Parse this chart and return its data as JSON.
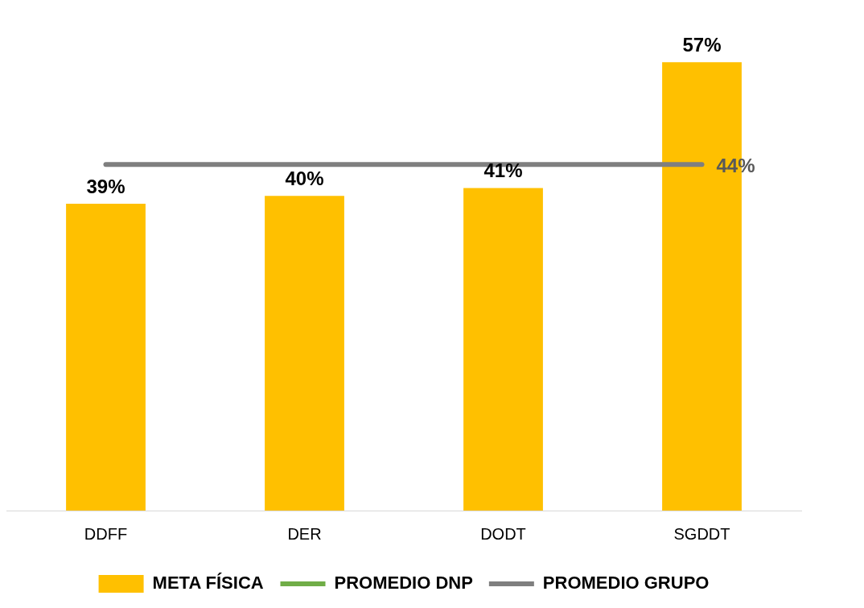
{
  "chart_data": {
    "type": "bar",
    "categories": [
      "DDFF",
      "DER",
      "DODT",
      "SGDDT"
    ],
    "series": [
      {
        "name": "META FÍSICA",
        "color": "#ffc000",
        "values": [
          39,
          40,
          41,
          57
        ],
        "value_labels": [
          "39%",
          "40%",
          "41%",
          "57%"
        ]
      },
      {
        "name": "PROMEDIO DNP",
        "type": "line",
        "color": "#70ad47",
        "values": [
          null,
          null,
          null,
          null
        ]
      },
      {
        "name": "PROMEDIO GRUPO",
        "type": "line",
        "color": "#7f7f7f",
        "values": [
          44,
          44,
          44,
          44
        ],
        "value_labels": [
          null,
          null,
          null,
          "44%"
        ]
      }
    ],
    "tick_labels": "x",
    "grid": false,
    "legend": "bottom",
    "marker": "none"
  }
}
